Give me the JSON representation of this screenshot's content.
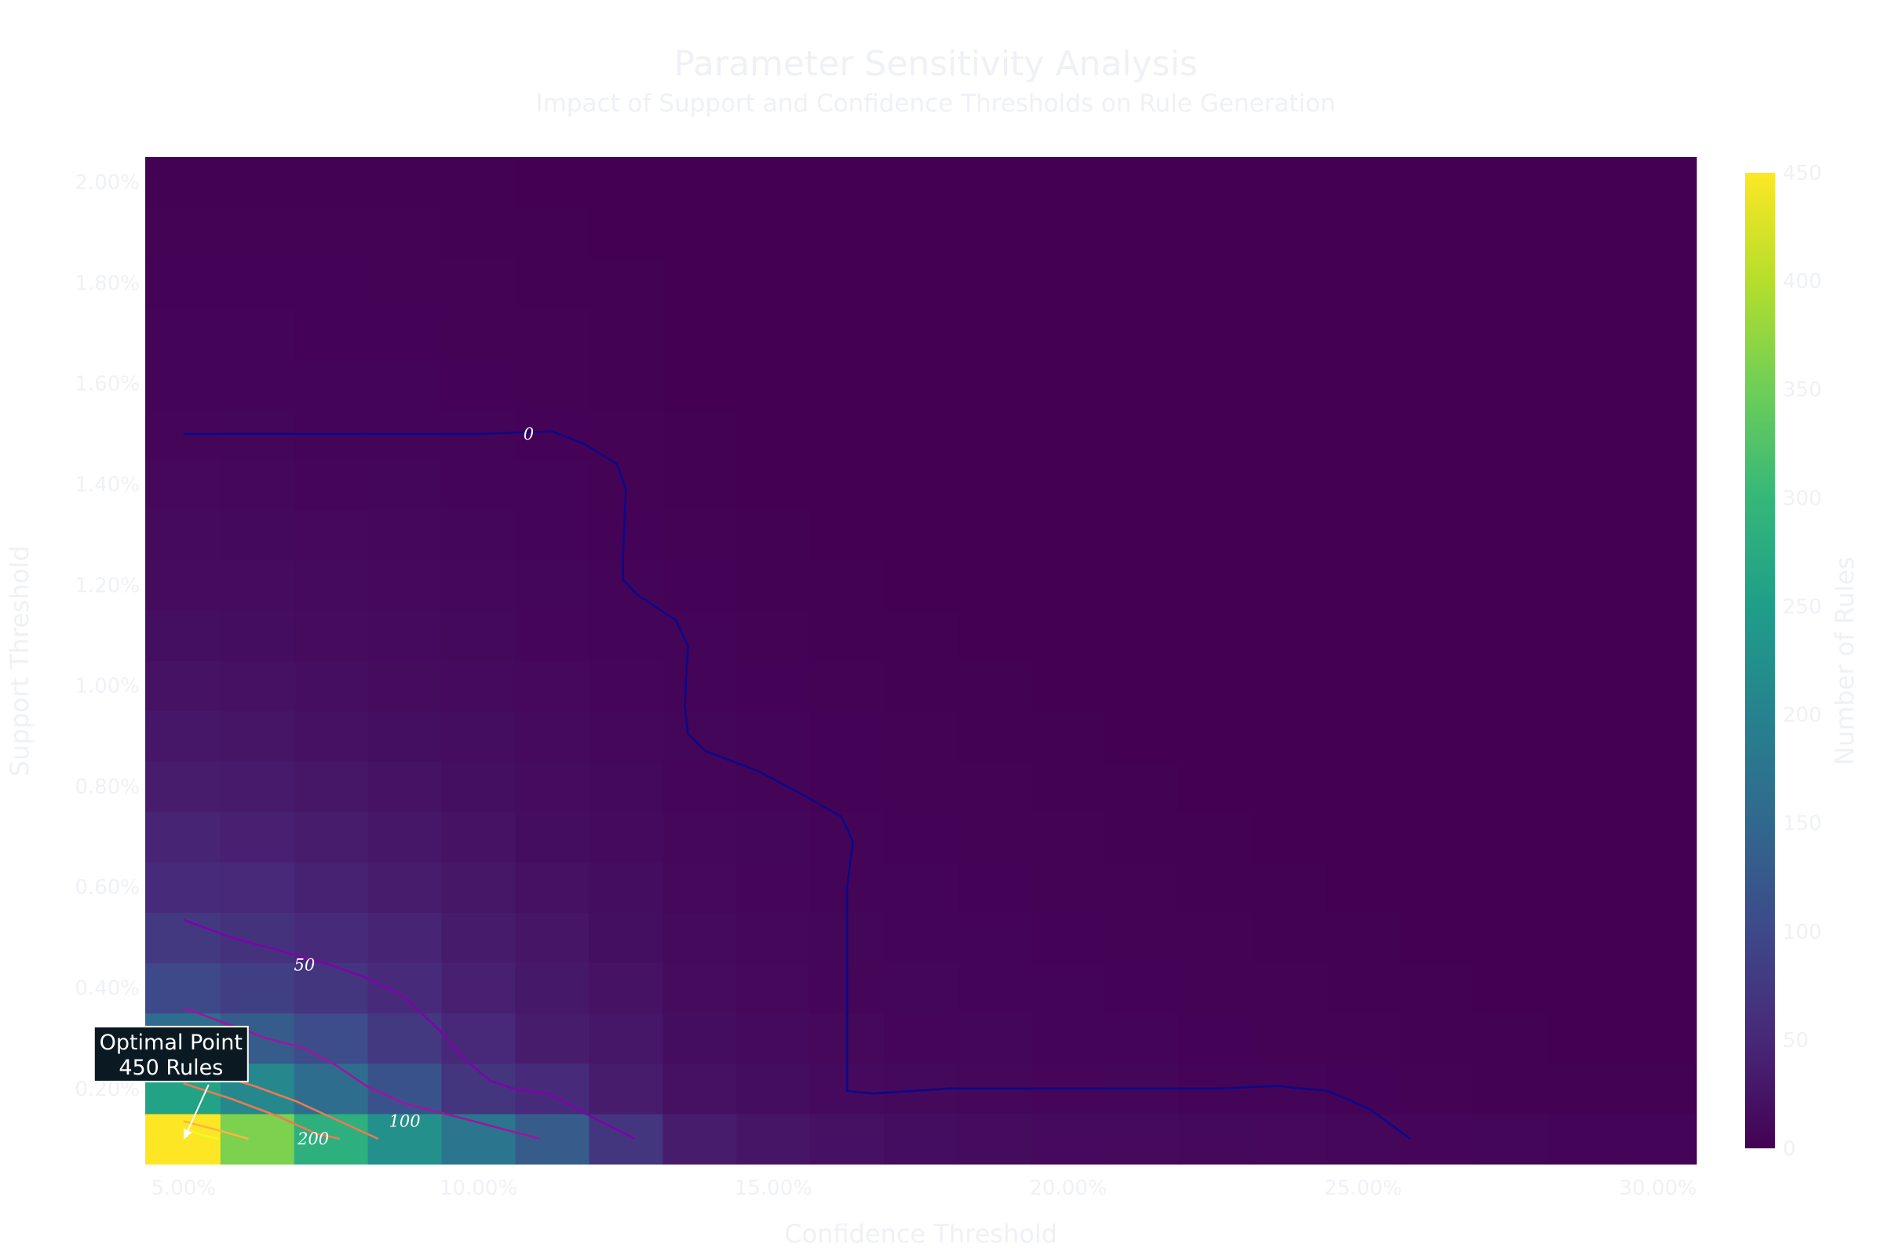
{
  "chart_data": {
    "type": "heatmap",
    "title": "Parameter Sensitivity Analysis",
    "subtitle": "Impact of Support and Confidence Thresholds on Rule Generation",
    "xlabel": "Confidence Threshold",
    "ylabel": "Support Threshold",
    "x": [
      0.05,
      0.0625,
      0.075,
      0.0875,
      0.1,
      0.1125,
      0.125,
      0.1375,
      0.15,
      0.1625,
      0.175,
      0.1875,
      0.2,
      0.2125,
      0.225,
      0.2375,
      0.25,
      0.2625,
      0.275,
      0.2875,
      0.3
    ],
    "y": [
      0.001,
      0.002,
      0.003,
      0.004,
      0.005,
      0.006,
      0.007,
      0.008,
      0.009,
      0.01,
      0.011,
      0.012,
      0.013,
      0.014,
      0.015,
      0.016,
      0.017,
      0.018,
      0.019,
      0.02
    ],
    "z": [
      [
        450,
        360,
        285,
        225,
        175,
        130,
        70,
        35,
        25,
        20,
        16,
        14,
        12,
        11,
        10,
        9,
        8,
        7,
        6,
        5,
        5
      ],
      [
        260,
        210,
        160,
        115,
        70,
        55,
        35,
        20,
        15,
        12,
        10,
        8,
        7,
        6,
        5,
        4,
        3,
        2,
        1,
        1,
        1
      ],
      [
        160,
        130,
        105,
        75,
        50,
        35,
        28,
        16,
        12,
        9,
        7,
        6,
        5,
        4,
        3,
        2,
        2,
        1,
        1,
        0,
        0
      ],
      [
        100,
        85,
        70,
        55,
        40,
        30,
        22,
        13,
        9,
        7,
        6,
        5,
        4,
        3,
        2,
        2,
        1,
        1,
        0,
        0,
        0
      ],
      [
        75,
        65,
        55,
        45,
        33,
        25,
        18,
        11,
        8,
        6,
        5,
        4,
        3,
        2,
        2,
        1,
        1,
        0,
        0,
        0,
        0
      ],
      [
        55,
        50,
        42,
        35,
        27,
        20,
        15,
        9,
        7,
        5,
        4,
        3,
        2,
        2,
        1,
        1,
        0,
        0,
        0,
        0,
        0
      ],
      [
        45,
        40,
        34,
        28,
        22,
        16,
        12,
        8,
        6,
        4,
        3,
        2,
        2,
        1,
        1,
        0,
        0,
        0,
        0,
        0,
        0
      ],
      [
        35,
        32,
        27,
        22,
        18,
        13,
        10,
        7,
        5,
        3,
        2,
        2,
        1,
        1,
        0,
        0,
        0,
        0,
        0,
        0,
        0
      ],
      [
        28,
        25,
        21,
        18,
        15,
        11,
        8,
        6,
        4,
        3,
        2,
        1,
        1,
        0,
        0,
        0,
        0,
        0,
        0,
        0,
        0
      ],
      [
        22,
        20,
        17,
        14,
        12,
        9,
        7,
        5,
        3,
        2,
        1,
        1,
        0,
        0,
        0,
        0,
        0,
        0,
        0,
        0,
        0
      ],
      [
        18,
        16,
        14,
        12,
        10,
        7,
        5,
        4,
        2,
        1,
        1,
        0,
        0,
        0,
        0,
        0,
        0,
        0,
        0,
        0,
        0
      ],
      [
        14,
        13,
        11,
        9,
        8,
        6,
        4,
        3,
        1,
        1,
        0,
        0,
        0,
        0,
        0,
        0,
        0,
        0,
        0,
        0,
        0
      ],
      [
        11,
        10,
        9,
        8,
        6,
        5,
        3,
        2,
        1,
        0,
        0,
        0,
        0,
        0,
        0,
        0,
        0,
        0,
        0,
        0,
        0
      ],
      [
        9,
        8,
        7,
        6,
        5,
        4,
        2,
        1,
        0,
        0,
        0,
        0,
        0,
        0,
        0,
        0,
        0,
        0,
        0,
        0,
        0
      ],
      [
        7,
        6,
        5,
        5,
        4,
        3,
        2,
        1,
        0,
        0,
        0,
        0,
        0,
        0,
        0,
        0,
        0,
        0,
        0,
        0,
        0
      ],
      [
        5,
        5,
        4,
        4,
        3,
        2,
        1,
        0,
        0,
        0,
        0,
        0,
        0,
        0,
        0,
        0,
        0,
        0,
        0,
        0,
        0
      ],
      [
        4,
        4,
        3,
        3,
        2,
        2,
        1,
        0,
        0,
        0,
        0,
        0,
        0,
        0,
        0,
        0,
        0,
        0,
        0,
        0,
        0
      ],
      [
        3,
        3,
        3,
        2,
        2,
        1,
        1,
        0,
        0,
        0,
        0,
        0,
        0,
        0,
        0,
        0,
        0,
        0,
        0,
        0,
        0
      ],
      [
        2,
        2,
        2,
        2,
        1,
        1,
        0,
        0,
        0,
        0,
        0,
        0,
        0,
        0,
        0,
        0,
        0,
        0,
        0,
        0,
        0
      ],
      [
        1,
        1,
        1,
        1,
        1,
        0,
        0,
        0,
        0,
        0,
        0,
        0,
        0,
        0,
        0,
        0,
        0,
        0,
        0,
        0,
        0
      ]
    ],
    "xlim": [
      0.0435,
      0.3065
    ],
    "ylim": [
      0.0005,
      0.0205
    ],
    "x_ticks": [
      0.05,
      0.1,
      0.15,
      0.2,
      0.25,
      0.3
    ],
    "x_tick_labels": [
      "5.00%",
      "10.00%",
      "15.00%",
      "20.00%",
      "25.00%",
      "30.00%"
    ],
    "y_ticks": [
      0.002,
      0.004,
      0.006,
      0.008,
      0.01,
      0.012,
      0.014,
      0.016,
      0.018,
      0.02
    ],
    "y_tick_labels": [
      "0.20%",
      "0.40%",
      "0.60%",
      "0.80%",
      "1.00%",
      "1.20%",
      "1.40%",
      "1.60%",
      "1.80%",
      "2.00%"
    ],
    "colorscale": "Viridis",
    "colorscale_stops": [
      "#440154",
      "#482878",
      "#3e4989",
      "#31688e",
      "#26828e",
      "#1f9e89",
      "#35b779",
      "#6ece58",
      "#b5de2b",
      "#fde725"
    ],
    "zlim": [
      0,
      450
    ],
    "colorbar": {
      "title": "Number of Rules",
      "ticks": [
        0,
        50,
        100,
        150,
        200,
        250,
        300,
        350,
        400,
        450
      ],
      "tick_labels": [
        "0",
        "50",
        "100",
        "150",
        "200",
        "250",
        "300",
        "350",
        "400",
        "450"
      ]
    },
    "contours": [
      {
        "level": "0",
        "color": "#0d0887",
        "label_at": [
          0.1085,
          0.015
        ],
        "points": [
          [
            0.05,
            0.015
          ],
          [
            0.075,
            0.015
          ],
          [
            0.1,
            0.015
          ],
          [
            0.1125,
            0.01505
          ],
          [
            0.118,
            0.0148
          ],
          [
            0.1235,
            0.0144
          ],
          [
            0.125,
            0.0139
          ],
          [
            0.1245,
            0.0126
          ],
          [
            0.1245,
            0.0121
          ],
          [
            0.127,
            0.0118
          ],
          [
            0.1335,
            0.0113
          ],
          [
            0.1355,
            0.0108
          ],
          [
            0.135,
            0.0096
          ],
          [
            0.1355,
            0.00905
          ],
          [
            0.1385,
            0.0087
          ],
          [
            0.1475,
            0.0083
          ],
          [
            0.1555,
            0.0078
          ],
          [
            0.1615,
            0.0074
          ],
          [
            0.1635,
            0.0069
          ],
          [
            0.1625,
            0.006
          ],
          [
            0.1625,
            0.004
          ],
          [
            0.1625,
            0.0028
          ],
          [
            0.1625,
            0.0024
          ],
          [
            0.1625,
            0.00195
          ],
          [
            0.167,
            0.0019
          ],
          [
            0.18,
            0.002
          ],
          [
            0.2,
            0.002
          ],
          [
            0.225,
            0.002
          ],
          [
            0.2355,
            0.00205
          ],
          [
            0.244,
            0.00195
          ],
          [
            0.251,
            0.0016
          ],
          [
            0.258,
            0.001
          ]
        ]
      },
      {
        "level": "50",
        "color": "#7e03a8",
        "label_at": [
          0.0705,
          0.00445
        ],
        "points": [
          [
            0.05,
            0.00535
          ],
          [
            0.058,
            0.005
          ],
          [
            0.066,
            0.00475
          ],
          [
            0.075,
            0.00445
          ],
          [
            0.081,
            0.0042
          ],
          [
            0.087,
            0.00385
          ],
          [
            0.093,
            0.0032
          ],
          [
            0.098,
            0.00255
          ],
          [
            0.102,
            0.00215
          ],
          [
            0.1065,
            0.00198
          ],
          [
            0.112,
            0.0019
          ],
          [
            0.119,
            0.00145
          ],
          [
            0.1265,
            0.001
          ]
        ]
      },
      {
        "level": "100",
        "color": "#9c179e",
        "label_at": [
          0.0875,
          0.00135
        ],
        "points": [
          [
            0.05,
            0.0036
          ],
          [
            0.057,
            0.0033
          ],
          [
            0.064,
            0.003
          ],
          [
            0.0705,
            0.0028
          ],
          [
            0.076,
            0.00245
          ],
          [
            0.081,
            0.00205
          ],
          [
            0.0875,
            0.0017
          ],
          [
            0.096,
            0.00145
          ],
          [
            0.104,
            0.0012
          ],
          [
            0.1105,
            0.001
          ]
        ]
      },
      {
        "level": "200",
        "color": "#ed7953",
        "label_at": [
          0.072,
          0.001
        ],
        "points": [
          [
            0.055,
            0.0023
          ],
          [
            0.062,
            0.00205
          ],
          [
            0.069,
            0.00175
          ],
          [
            0.0765,
            0.00135
          ],
          [
            0.083,
            0.001
          ]
        ]
      },
      {
        "level": "",
        "color": "#ed7953",
        "points": [
          [
            0.05,
            0.0021
          ],
          [
            0.058,
            0.0018
          ],
          [
            0.066,
            0.00145
          ],
          [
            0.0725,
            0.0011
          ],
          [
            0.0765,
            0.001
          ]
        ]
      },
      {
        "level": "",
        "color": "#f9b641",
        "points": [
          [
            0.05,
            0.00135
          ],
          [
            0.055,
            0.0012
          ],
          [
            0.061,
            0.001
          ]
        ]
      },
      {
        "level": "",
        "color": "#f0f921",
        "points": [
          [
            0.05,
            0.0012
          ],
          [
            0.053,
            0.00108
          ],
          [
            0.056,
            0.001
          ]
        ]
      }
    ],
    "annotation": {
      "line1": "Optimal Point",
      "line2": "450 Rules",
      "x": 0.05,
      "y": 0.001
    }
  }
}
